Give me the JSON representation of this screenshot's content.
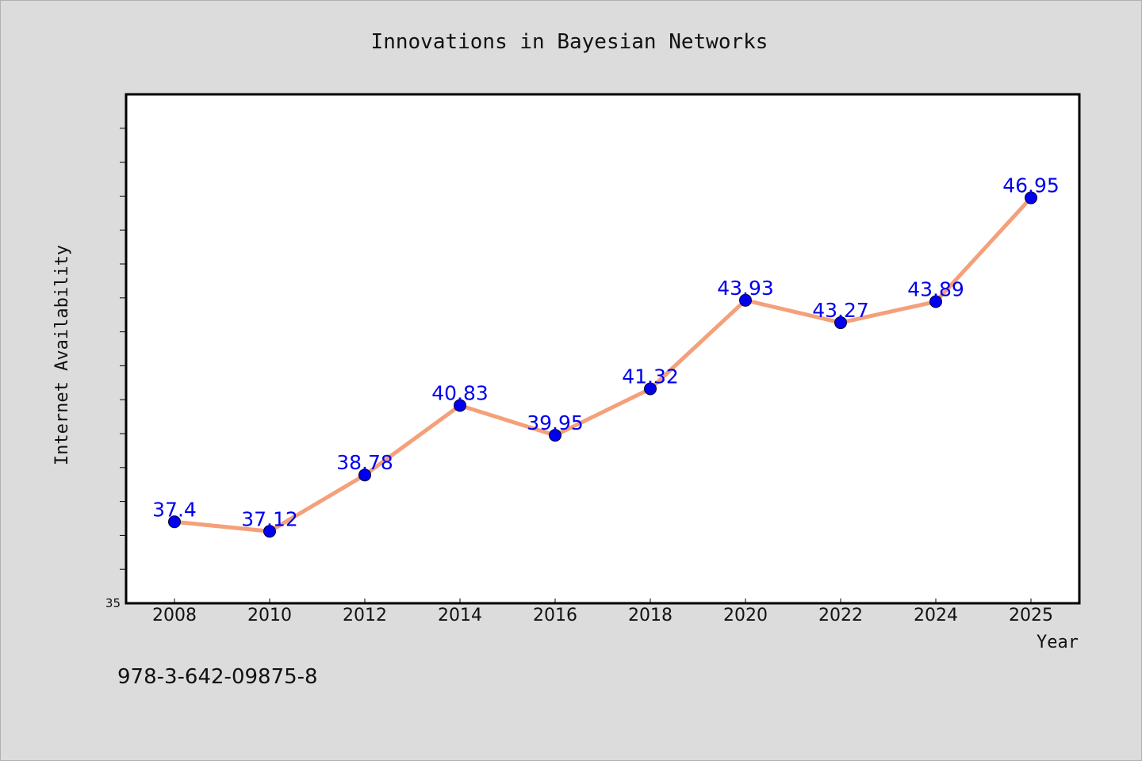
{
  "chart_data": {
    "type": "line",
    "title": "Innovations in Bayesian Networks",
    "xlabel": "Year",
    "ylabel": "Internet Availability",
    "categories": [
      "2008",
      "2010",
      "2012",
      "2014",
      "2016",
      "2018",
      "2020",
      "2022",
      "2024",
      "2025"
    ],
    "values": [
      37.4,
      37.12,
      38.78,
      40.83,
      39.95,
      41.32,
      43.93,
      43.27,
      43.89,
      46.95
    ],
    "data_labels": [
      "37.4",
      "37.12",
      "38.78",
      "40.83",
      "39.95",
      "41.32",
      "43.93",
      "43.27",
      "43.89",
      "46.95"
    ],
    "ylim": [
      35,
      50
    ],
    "y_tick_labels": [
      "35"
    ],
    "grid": false,
    "legend": "none",
    "colors": {
      "line": "#f4a07a",
      "marker": "#0000ee",
      "data_label": "#0000ee",
      "plot_background": "#ffffff",
      "page_background": "#dcdcdc"
    }
  },
  "footer": {
    "isbn": "978-3-642-09875-8"
  }
}
